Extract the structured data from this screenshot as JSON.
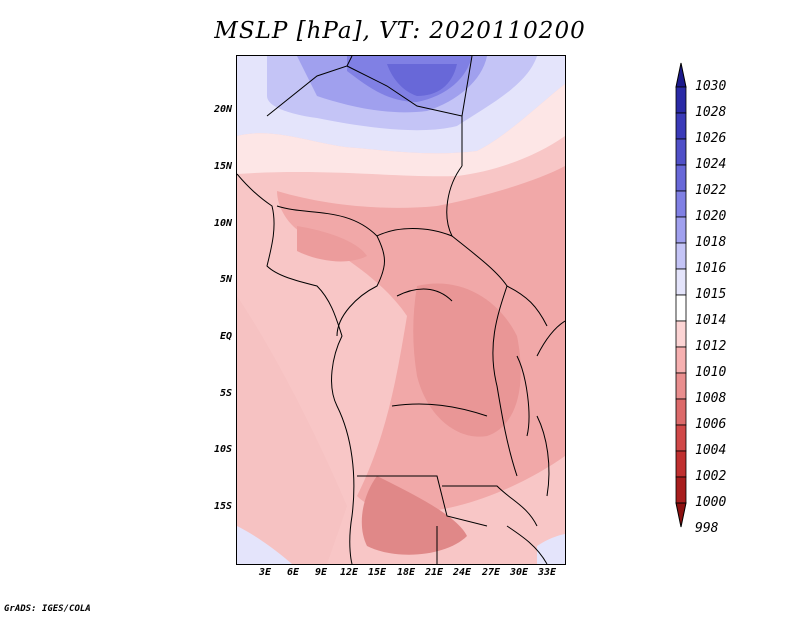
{
  "title": "MSLP [hPa], VT: 2020110200",
  "credit": "GrADS: IGES/COLA",
  "lat_labels": [
    "20N",
    "15N",
    "10N",
    "5N",
    "EQ",
    "5S",
    "10S",
    "15S"
  ],
  "lon_labels": [
    "3E",
    "6E",
    "9E",
    "12E",
    "15E",
    "18E",
    "21E",
    "24E",
    "27E",
    "30E",
    "33E"
  ],
  "colorbar": {
    "labels": [
      "1030",
      "1028",
      "1026",
      "1024",
      "1022",
      "1020",
      "1018",
      "1016",
      "1015",
      "1014",
      "1012",
      "1010",
      "1008",
      "1006",
      "1004",
      "1002",
      "1000",
      "998"
    ],
    "colors": [
      "#1c1a8c",
      "#2a2aa6",
      "#3a3ab8",
      "#5050c8",
      "#6868d8",
      "#8080e4",
      "#a0a0ee",
      "#c4c4f6",
      "#e4e4fb",
      "#ffffff",
      "#fcd4d4",
      "#f6b0b0",
      "#e98e8e",
      "#dc6a6a",
      "#d04848",
      "#c03030",
      "#a81e1e",
      "#8c1010"
    ]
  }
}
